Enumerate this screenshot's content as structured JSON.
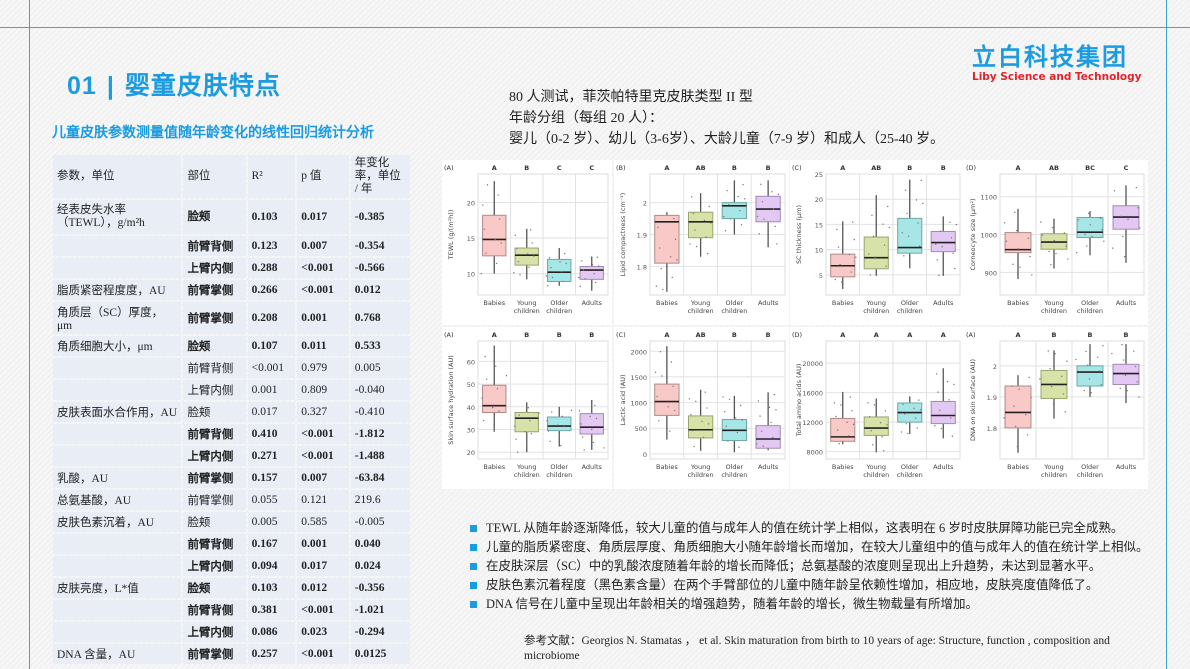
{
  "header": {
    "section_number": "01",
    "separator": "|",
    "title": "婴童皮肤特点",
    "logo_cn": "立白科技集团",
    "logo_en": "Liby Science and Technology"
  },
  "subtitle": "儿童皮肤参数测量值随年龄变化的线性回归统计分析",
  "table": {
    "headers": [
      "参数，单位",
      "部位",
      "R²",
      "p 值",
      "年变化率，单位 / 年"
    ],
    "rows": [
      {
        "param": "经表皮失水率（TEWL），g/m²h",
        "site": "脸颊",
        "r2": "0.103",
        "p": "0.017",
        "rate": "-0.385",
        "bold": true
      },
      {
        "param": "",
        "site": "前臂背侧",
        "r2": "0.123",
        "p": "0.007",
        "rate": "-0.354",
        "bold": true
      },
      {
        "param": "",
        "site": "上臂内侧",
        "r2": "0.288",
        "p": "<0.001",
        "rate": "-0.566",
        "bold": true
      },
      {
        "param": "脂质紧密程度度，AU",
        "site": "前臂掌侧",
        "r2": "0.266",
        "p": "<0.001",
        "rate": "0.012",
        "bold": true
      },
      {
        "param": "角质层（SC）厚度，μm",
        "site": "前臂掌侧",
        "r2": "0.208",
        "p": "0.001",
        "rate": "0.768",
        "bold": true
      },
      {
        "param": "角质细胞大小，μm",
        "site": "脸颊",
        "r2": "0.107",
        "p": "0.011",
        "rate": "0.533",
        "bold": true
      },
      {
        "param": "",
        "site": "前臂背侧",
        "r2": "<0.001",
        "p": "0.979",
        "rate": "0.005",
        "bold": false
      },
      {
        "param": "",
        "site": "上臂内侧",
        "r2": "0.001",
        "p": "0.809",
        "rate": "-0.040",
        "bold": false
      },
      {
        "param": "皮肤表面水合作用，AU",
        "site": "脸颊",
        "r2": "0.017",
        "p": "0.327",
        "rate": "-0.410",
        "bold": false
      },
      {
        "param": "",
        "site": "前臂背侧",
        "r2": "0.410",
        "p": "<0.001",
        "rate": "-1.812",
        "bold": true
      },
      {
        "param": "",
        "site": "上臂内侧",
        "r2": "0.271",
        "p": "<0.001",
        "rate": "-1.488",
        "bold": true
      },
      {
        "param": "乳酸，AU",
        "site": "前臂掌侧",
        "r2": "0.157",
        "p": "0.007",
        "rate": "-63.84",
        "bold": true
      },
      {
        "param": "总氨基酸，AU",
        "site": "前臂掌侧",
        "r2": "0.055",
        "p": "0.121",
        "rate": "219.6",
        "bold": false
      },
      {
        "param": "皮肤色素沉着，AU",
        "site": "脸颊",
        "r2": "0.005",
        "p": "0.585",
        "rate": "-0.005",
        "bold": false
      },
      {
        "param": "",
        "site": "前臂背侧",
        "r2": "0.167",
        "p": "0.001",
        "rate": "0.040",
        "bold": true
      },
      {
        "param": "",
        "site": "上臂内侧",
        "r2": "0.094",
        "p": "0.017",
        "rate": "0.024",
        "bold": true
      },
      {
        "param": "皮肤亮度，L*值",
        "site": "脸颊",
        "r2": "0.103",
        "p": "0.012",
        "rate": "-0.356",
        "bold": true
      },
      {
        "param": "",
        "site": "前臂背侧",
        "r2": "0.381",
        "p": "<0.001",
        "rate": "-1.021",
        "bold": true
      },
      {
        "param": "",
        "site": "上臂内侧",
        "r2": "0.086",
        "p": "0.023",
        "rate": "-0.294",
        "bold": true
      },
      {
        "param": "DNA 含量，AU",
        "site": "前臂掌侧",
        "r2": "0.257",
        "p": "<0.001",
        "rate": "0.0125",
        "bold": true
      }
    ]
  },
  "intro": {
    "line1": "80 人测试，菲茨帕特里克皮肤类型 II 型",
    "line2": "年龄分组（每组 20 人）：",
    "line3": "婴儿（0-2 岁）、幼儿（3-6岁）、大龄儿童（7-9 岁）和成人（25-40 岁。"
  },
  "colors": {
    "accent": "#1b9be0",
    "logo_red": "#e0232a",
    "table_cell": "#e8edf6",
    "babies": "#f8c9c6",
    "young": "#d6e2a8",
    "older": "#a6e6e6",
    "adults": "#e2c8f2"
  },
  "chart_data": [
    {
      "type": "box",
      "panel": "(A)",
      "ylabel": "TEWL (g/(m²h))",
      "yticks": [
        10,
        15,
        20
      ],
      "ylim": [
        7,
        24
      ],
      "categories": [
        "Babies",
        "Young children",
        "Older children",
        "Adults"
      ],
      "letters": [
        "A",
        "B",
        "C",
        "C"
      ],
      "boxes": [
        {
          "min": 10,
          "q1": 12.5,
          "median": 14.8,
          "q3": 18.2,
          "max": 23
        },
        {
          "min": 9.2,
          "q1": 11.2,
          "median": 12.6,
          "q3": 13.6,
          "max": 16.3
        },
        {
          "min": 8.3,
          "q1": 8.9,
          "median": 10.2,
          "q3": 12,
          "max": 13.6
        },
        {
          "min": 7.6,
          "q1": 9.2,
          "median": 10.5,
          "q3": 11,
          "max": 12.4
        }
      ]
    },
    {
      "type": "box",
      "panel": "(B)",
      "ylabel": "Lipid compactness (cm⁻¹)",
      "yticks": [
        1.8,
        1.9,
        2.0
      ],
      "ylim": [
        1.71,
        2.09
      ],
      "categories": [
        "Babies",
        "Young children",
        "Older children",
        "Adults"
      ],
      "letters": [
        "A",
        "AB",
        "B",
        "B"
      ],
      "boxes": [
        {
          "min": 1.72,
          "q1": 1.81,
          "median": 1.94,
          "q3": 1.96,
          "max": 1.97
        },
        {
          "min": 1.83,
          "q1": 1.89,
          "median": 1.94,
          "q3": 1.97,
          "max": 2.03
        },
        {
          "min": 1.9,
          "q1": 1.95,
          "median": 1.99,
          "q3": 2.0,
          "max": 2.07
        },
        {
          "min": 1.86,
          "q1": 1.94,
          "median": 1.98,
          "q3": 2.02,
          "max": 2.07
        }
      ]
    },
    {
      "type": "box",
      "panel": "(C)",
      "ylabel": "SC thickness (μm)",
      "yticks": [
        5,
        10,
        15,
        20,
        25
      ],
      "ylim": [
        1,
        25
      ],
      "categories": [
        "Babies",
        "Young children",
        "Older children",
        "Adults"
      ],
      "letters": [
        "A",
        "AB",
        "B",
        "B"
      ],
      "boxes": [
        {
          "min": 2.2,
          "q1": 4.6,
          "median": 6.8,
          "q3": 9.1,
          "max": 15.6
        },
        {
          "min": 4.8,
          "q1": 6.2,
          "median": 8.4,
          "q3": 12.5,
          "max": 20.8
        },
        {
          "min": 6.3,
          "q1": 9.3,
          "median": 10.4,
          "q3": 16.2,
          "max": 23.9
        },
        {
          "min": 4.8,
          "q1": 9.6,
          "median": 11.4,
          "q3": 13.6,
          "max": 16.6
        }
      ]
    },
    {
      "type": "box",
      "panel": "(D)",
      "ylabel": "Corneocyte size (μm²)",
      "yticks": [
        900,
        1000,
        1100
      ],
      "ylim": [
        840,
        1160
      ],
      "categories": [
        "Babies",
        "Young children",
        "Older children",
        "Adults"
      ],
      "letters": [
        "A",
        "AB",
        "BC",
        "C"
      ],
      "boxes": [
        {
          "min": 882,
          "q1": 952,
          "median": 960,
          "q3": 1005,
          "max": 1068
        },
        {
          "min": 910,
          "q1": 961,
          "median": 980,
          "q3": 1002,
          "max": 1042
        },
        {
          "min": 945,
          "q1": 992,
          "median": 1006,
          "q3": 1045,
          "max": 1062
        },
        {
          "min": 925,
          "q1": 1014,
          "median": 1046,
          "q3": 1076,
          "max": 1130
        }
      ]
    },
    {
      "type": "box",
      "panel": "(A)",
      "ylabel": "Skin surface hydration (AU)",
      "yticks": [
        20,
        30,
        40,
        50,
        60
      ],
      "ylim": [
        17,
        69
      ],
      "categories": [
        "Babies",
        "Young children",
        "Older children",
        "Adults"
      ],
      "letters": [
        "A",
        "B",
        "B",
        "B"
      ],
      "boxes": [
        {
          "min": 29,
          "q1": 37.5,
          "median": 40.5,
          "q3": 49.5,
          "max": 67
        },
        {
          "min": 20,
          "q1": 29,
          "median": 35,
          "q3": 37.5,
          "max": 42
        },
        {
          "min": 22.5,
          "q1": 29.5,
          "median": 31.5,
          "q3": 35.5,
          "max": 40
        },
        {
          "min": 21,
          "q1": 28,
          "median": 31,
          "q3": 37,
          "max": 43
        }
      ]
    },
    {
      "type": "box",
      "panel": "(C)",
      "ylabel": "Lactic acid (AU)",
      "yticks": [
        0,
        500,
        1000,
        1500,
        2000
      ],
      "ylim": [
        -100,
        2200
      ],
      "categories": [
        "Babies",
        "Young children",
        "Older children",
        "Adults"
      ],
      "letters": [
        "A",
        "AB",
        "B",
        "B"
      ],
      "boxes": [
        {
          "min": 280,
          "q1": 750,
          "median": 1020,
          "q3": 1360,
          "max": 2100
        },
        {
          "min": 60,
          "q1": 310,
          "median": 470,
          "q3": 740,
          "max": 1250
        },
        {
          "min": 30,
          "q1": 260,
          "median": 460,
          "q3": 670,
          "max": 1130
        },
        {
          "min": 70,
          "q1": 110,
          "median": 290,
          "q3": 550,
          "max": 1200
        }
      ]
    },
    {
      "type": "box",
      "panel": "(D)",
      "ylabel": "Total amino acids (AU)",
      "yticks": [
        8000,
        12000,
        16000,
        20000
      ],
      "ylim": [
        7000,
        23000
      ],
      "categories": [
        "Babies",
        "Young children",
        "Older children",
        "Adults"
      ],
      "letters": [
        "A",
        "A",
        "A",
        "A"
      ],
      "boxes": [
        {
          "min": 9000,
          "q1": 9400,
          "median": 10000,
          "q3": 12500,
          "max": 16100
        },
        {
          "min": 7900,
          "q1": 10200,
          "median": 11200,
          "q3": 12700,
          "max": 15200
        },
        {
          "min": 10400,
          "q1": 12000,
          "median": 13300,
          "q3": 14600,
          "max": 15500
        },
        {
          "min": 9800,
          "q1": 11800,
          "median": 12900,
          "q3": 14800,
          "max": 19300
        }
      ]
    },
    {
      "type": "box",
      "panel": "(A)",
      "ylabel": "DNA on skin surface (AU)",
      "yticks": [
        1.8,
        1.9,
        2.0
      ],
      "ylim": [
        1.7,
        2.08
      ],
      "categories": [
        "Babies",
        "Young children",
        "Older children",
        "Adults"
      ],
      "letters": [
        "A",
        "B",
        "B",
        "B"
      ],
      "boxes": [
        {
          "min": 1.72,
          "q1": 1.8,
          "median": 1.85,
          "q3": 1.935,
          "max": 1.97
        },
        {
          "min": 1.83,
          "q1": 1.895,
          "median": 1.94,
          "q3": 1.985,
          "max": 2.05
        },
        {
          "min": 1.9,
          "q1": 1.935,
          "median": 1.98,
          "q3": 2.0,
          "max": 2.07
        },
        {
          "min": 1.88,
          "q1": 1.94,
          "median": 1.975,
          "q3": 2.005,
          "max": 2.07
        }
      ]
    }
  ],
  "bullets": [
    "TEWL 从随年龄逐渐降低，较大儿童的值与成年人的值在统计学上相似，这表明在 6 岁时皮肤屏障功能已完全成熟。",
    "儿童的脂质紧密度、角质层厚度、角质细胞大小随年龄增长而增加，在较大儿童组中的值与成年人的值在统计学上相似。",
    "在皮肤深层（SC）中的乳酸浓度随着年龄的增长而降低；总氨基酸的浓度则呈现出上升趋势，未达到显著水平。",
    "皮肤色素沉着程度（黑色素含量）在两个手臂部位的儿童中随年龄呈依赖性增加，相应地，皮肤亮度值降低了。",
    "DNA 信号在儿童中呈现出年龄相关的增强趋势，随着年龄的增长，微生物载量有所增加。"
  ],
  "reference": "参考文献：Georgios N. Stamatas ， et al. Skin maturation from birth to 10 years of age: Structure, function , composition and microbiome"
}
